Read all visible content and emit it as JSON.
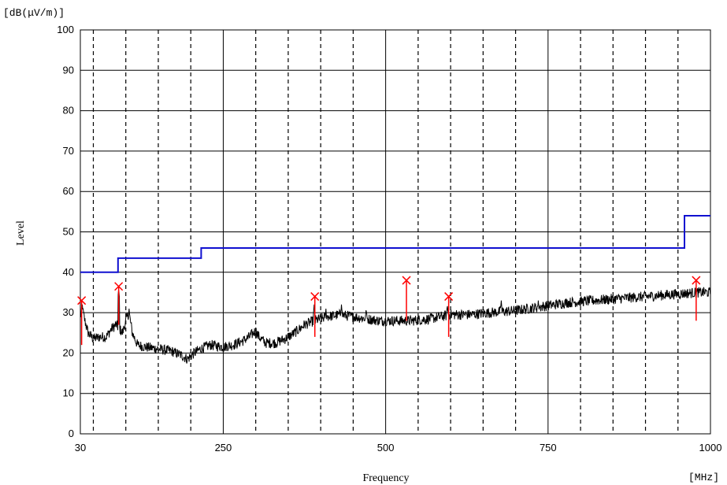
{
  "chart_data": {
    "type": "line",
    "y_unit": "[dB(μV/m)]",
    "x_unit": "[MHz]",
    "xlabel": "Frequency",
    "ylabel": "Level",
    "xlim": [
      30,
      1000
    ],
    "ylim": [
      0,
      100
    ],
    "x_ticks": [
      {
        "value": 30,
        "label": "30"
      },
      {
        "value": 250,
        "label": "250"
      },
      {
        "value": 500,
        "label": "500"
      },
      {
        "value": 750,
        "label": "750"
      },
      {
        "value": 1000,
        "label": "1000"
      }
    ],
    "y_ticks": [
      0,
      10,
      20,
      30,
      40,
      50,
      60,
      70,
      80,
      90,
      100
    ],
    "grid": true,
    "colors": {
      "trace": "#000000",
      "limit": "#1010d0",
      "marker": "#ff0000"
    },
    "limit_line": [
      {
        "x": 30,
        "y": 40
      },
      {
        "x": 88,
        "y": 40
      },
      {
        "x": 88,
        "y": 43.5
      },
      {
        "x": 216,
        "y": 43.5
      },
      {
        "x": 216,
        "y": 46
      },
      {
        "x": 960,
        "y": 46
      },
      {
        "x": 960,
        "y": 54
      },
      {
        "x": 1000,
        "y": 54
      }
    ],
    "trace_profile": [
      {
        "x": 30,
        "y": 29
      },
      {
        "x": 33,
        "y": 31
      },
      {
        "x": 37,
        "y": 28
      },
      {
        "x": 42,
        "y": 25
      },
      {
        "x": 50,
        "y": 23.5
      },
      {
        "x": 60,
        "y": 24
      },
      {
        "x": 70,
        "y": 24
      },
      {
        "x": 78,
        "y": 26
      },
      {
        "x": 85,
        "y": 27
      },
      {
        "x": 90,
        "y": 26
      },
      {
        "x": 95,
        "y": 25
      },
      {
        "x": 100,
        "y": 28
      },
      {
        "x": 105,
        "y": 30
      },
      {
        "x": 110,
        "y": 25
      },
      {
        "x": 118,
        "y": 22
      },
      {
        "x": 130,
        "y": 21.5
      },
      {
        "x": 150,
        "y": 21
      },
      {
        "x": 170,
        "y": 20.5
      },
      {
        "x": 185,
        "y": 19.5
      },
      {
        "x": 195,
        "y": 18.5
      },
      {
        "x": 205,
        "y": 20
      },
      {
        "x": 215,
        "y": 21
      },
      {
        "x": 230,
        "y": 22
      },
      {
        "x": 250,
        "y": 21.5
      },
      {
        "x": 265,
        "y": 22
      },
      {
        "x": 280,
        "y": 23
      },
      {
        "x": 290,
        "y": 24
      },
      {
        "x": 300,
        "y": 25.5
      },
      {
        "x": 305,
        "y": 24
      },
      {
        "x": 315,
        "y": 22.5
      },
      {
        "x": 330,
        "y": 22.5
      },
      {
        "x": 345,
        "y": 23.5
      },
      {
        "x": 360,
        "y": 25
      },
      {
        "x": 375,
        "y": 27
      },
      {
        "x": 390,
        "y": 28
      },
      {
        "x": 410,
        "y": 29
      },
      {
        "x": 430,
        "y": 29.5
      },
      {
        "x": 450,
        "y": 29
      },
      {
        "x": 470,
        "y": 28.5
      },
      {
        "x": 490,
        "y": 28
      },
      {
        "x": 510,
        "y": 28
      },
      {
        "x": 540,
        "y": 28
      },
      {
        "x": 570,
        "y": 28.5
      },
      {
        "x": 600,
        "y": 29.5
      },
      {
        "x": 630,
        "y": 29.5
      },
      {
        "x": 660,
        "y": 30
      },
      {
        "x": 700,
        "y": 30.5
      },
      {
        "x": 740,
        "y": 31.5
      },
      {
        "x": 780,
        "y": 32.5
      },
      {
        "x": 820,
        "y": 33
      },
      {
        "x": 860,
        "y": 33.5
      },
      {
        "x": 900,
        "y": 34
      },
      {
        "x": 940,
        "y": 34.5
      },
      {
        "x": 980,
        "y": 35
      },
      {
        "x": 1000,
        "y": 35
      }
    ],
    "trace_spikes": [
      {
        "x": 33,
        "y": 32
      },
      {
        "x": 89,
        "y": 36
      },
      {
        "x": 105,
        "y": 31
      },
      {
        "x": 390,
        "y": 32
      },
      {
        "x": 408,
        "y": 31
      },
      {
        "x": 432,
        "y": 32
      },
      {
        "x": 470,
        "y": 31
      },
      {
        "x": 595,
        "y": 32
      },
      {
        "x": 678,
        "y": 33
      },
      {
        "x": 735,
        "y": 33
      },
      {
        "x": 990,
        "y": 36
      }
    ],
    "markers": [
      {
        "x": 32,
        "peak": 33,
        "low": 22
      },
      {
        "x": 89,
        "peak": 36.5,
        "low": 27
      },
      {
        "x": 391,
        "peak": 34,
        "low": 24
      },
      {
        "x": 532,
        "peak": 38,
        "low": 28
      },
      {
        "x": 597,
        "peak": 34,
        "low": 24
      },
      {
        "x": 978,
        "peak": 38,
        "low": 28
      }
    ]
  }
}
